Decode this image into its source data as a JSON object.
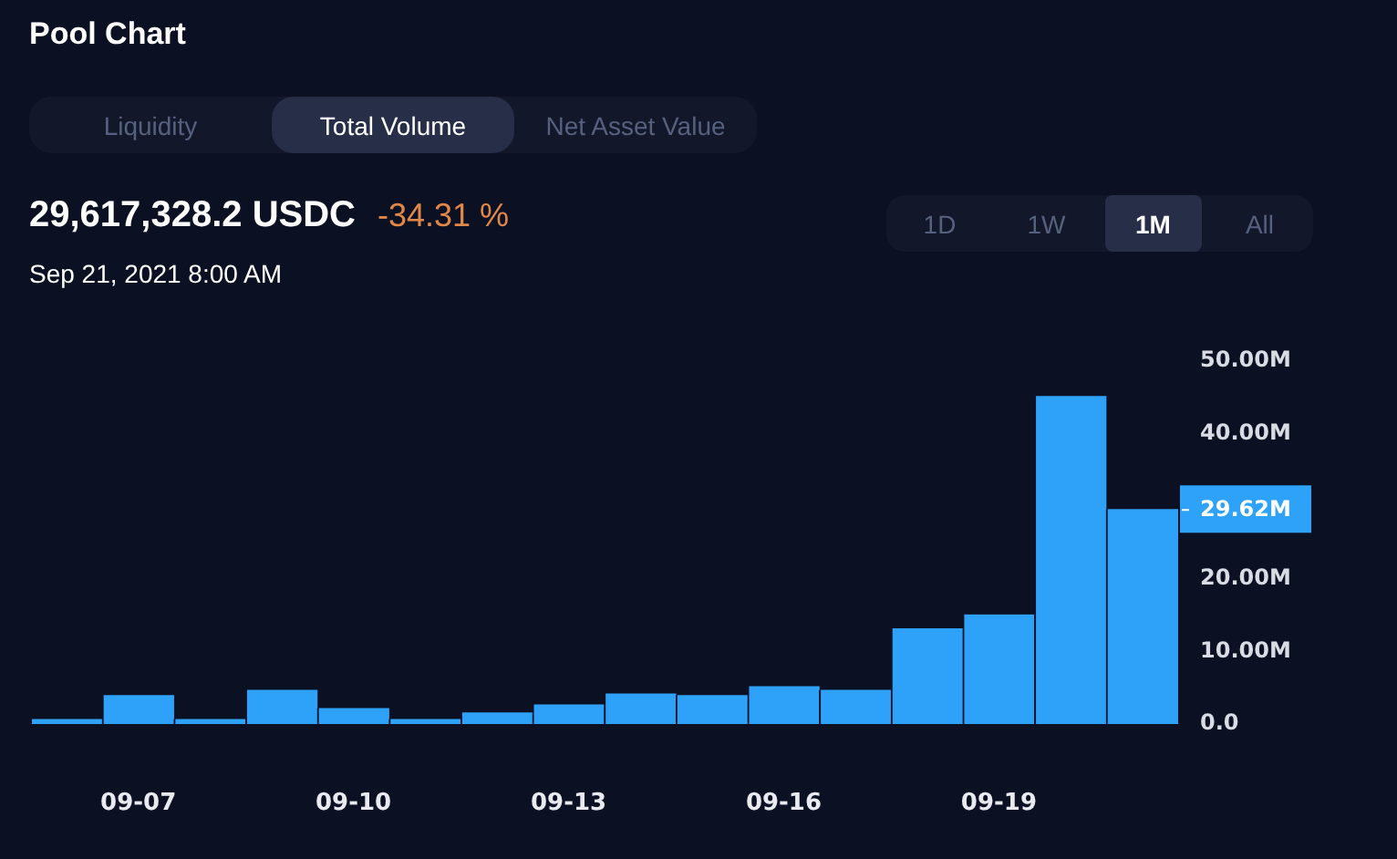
{
  "chart_data": {
    "type": "bar",
    "title": "Pool Chart",
    "subtitle": "29,617,328.2 USDC",
    "categories": [
      null,
      "09-07",
      null,
      null,
      "09-10",
      null,
      null,
      "09-13",
      null,
      null,
      "09-16",
      null,
      null,
      "09-19",
      null,
      null
    ],
    "values": [
      0.7,
      4.0,
      0.7,
      4.7,
      2.2,
      0.7,
      1.6,
      2.7,
      4.2,
      4.0,
      5.2,
      4.7,
      13.2,
      15.1,
      45.2,
      29.62
    ],
    "color": "#2ea1f8",
    "ylim": [
      0,
      50
    ],
    "yticks": [
      {
        "value": 0,
        "label": "0.0"
      },
      {
        "value": 10,
        "label": "10.00M"
      },
      {
        "value": 20,
        "label": "20.00M"
      },
      {
        "value": 40,
        "label": "40.00M"
      },
      {
        "value": 50,
        "label": "50.00M"
      }
    ],
    "annotations": [
      "-34.31 %",
      "Sep 21, 2021 8:00 AM",
      "Liquidity",
      "Total Volume",
      "Net Asset Value",
      "1D",
      "1W",
      "1M",
      "All",
      "29.62M"
    ]
  }
}
